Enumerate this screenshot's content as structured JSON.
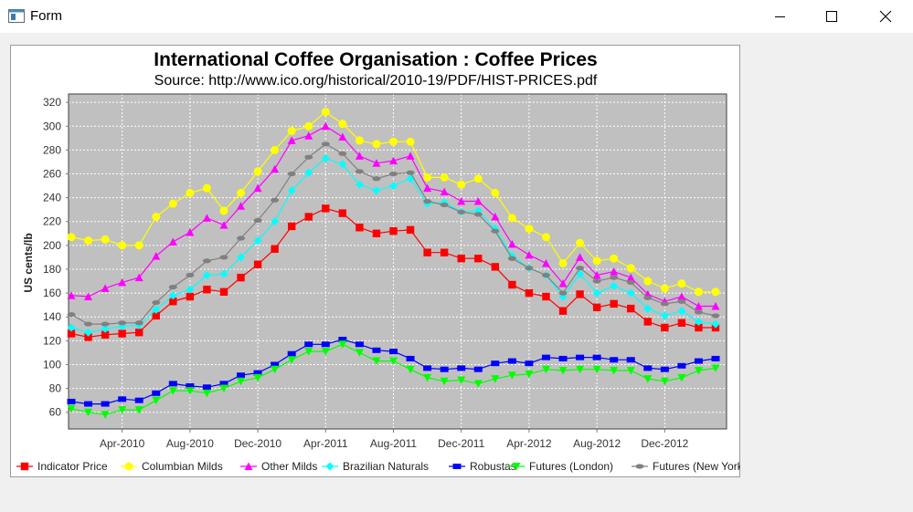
{
  "window": {
    "title": "Form",
    "icons": {
      "app": "form-app-icon",
      "minimize": "minimize-icon",
      "maximize": "maximize-icon",
      "close": "close-icon"
    }
  },
  "chart_data": {
    "type": "line",
    "title": "International Coffee Organisation : Coffee Prices",
    "subtitle": "Source: http://www.ico.org/historical/2010-19/PDF/HIST-PRICES.pdf",
    "xlabel": "",
    "ylabel": "US cents/lb",
    "ylim": [
      46,
      327
    ],
    "yticks": [
      60,
      80,
      100,
      120,
      140,
      160,
      180,
      200,
      220,
      240,
      260,
      280,
      300,
      320
    ],
    "x_tick_labels": [
      "Apr-2010",
      "Aug-2010",
      "Dec-2010",
      "Apr-2011",
      "Aug-2011",
      "Dec-2011",
      "Apr-2012",
      "Aug-2012",
      "Dec-2012"
    ],
    "x_tick_indices": [
      3,
      7,
      11,
      15,
      19,
      23,
      27,
      31,
      35
    ],
    "x": [
      "Jan-2010",
      "Feb-2010",
      "Mar-2010",
      "Apr-2010",
      "May-2010",
      "Jun-2010",
      "Jul-2010",
      "Aug-2010",
      "Sep-2010",
      "Oct-2010",
      "Nov-2010",
      "Dec-2010",
      "Jan-2011",
      "Feb-2011",
      "Mar-2011",
      "Apr-2011",
      "May-2011",
      "Jun-2011",
      "Jul-2011",
      "Aug-2011",
      "Sep-2011",
      "Oct-2011",
      "Nov-2011",
      "Dec-2011",
      "Jan-2012",
      "Feb-2012",
      "Mar-2012",
      "Apr-2012",
      "May-2012",
      "Jun-2012",
      "Jul-2012",
      "Aug-2012",
      "Sep-2012",
      "Oct-2012",
      "Nov-2012",
      "Dec-2012",
      "Jan-2013",
      "Feb-2013",
      "Mar-2013"
    ],
    "grid": true,
    "legend_position": "bottom",
    "series": [
      {
        "name": "Indicator Price",
        "color": "#ff0000",
        "marker": "square",
        "values": [
          126,
          123,
          125,
          126,
          127,
          141,
          153,
          157,
          163,
          161,
          173,
          184,
          197,
          216,
          224,
          231,
          227,
          215,
          210,
          212,
          213,
          194,
          194,
          189,
          189,
          182,
          167,
          160,
          157,
          145,
          159,
          148,
          151,
          147,
          136,
          131,
          135,
          131,
          131
        ]
      },
      {
        "name": "Columbian Milds",
        "color": "#ffff00",
        "marker": "circle",
        "values": [
          207,
          204,
          205,
          200,
          200,
          224,
          235,
          244,
          248,
          229,
          244,
          262,
          280,
          296,
          300,
          312,
          302,
          288,
          285,
          287,
          287,
          257,
          257,
          251,
          256,
          244,
          223,
          214,
          207,
          185,
          202,
          187,
          189,
          181,
          170,
          164,
          168,
          161,
          161
        ]
      },
      {
        "name": "Other Milds",
        "color": "#ff00ff",
        "marker": "triangle-up",
        "values": [
          158,
          157,
          164,
          169,
          173,
          191,
          203,
          211,
          223,
          217,
          233,
          248,
          264,
          288,
          292,
          300,
          291,
          275,
          269,
          271,
          275,
          248,
          245,
          237,
          237,
          224,
          201,
          192,
          185,
          168,
          190,
          175,
          178,
          173,
          159,
          153,
          157,
          149,
          149
        ]
      },
      {
        "name": "Brazilian Naturals",
        "color": "#00ffff",
        "marker": "diamond",
        "values": [
          131,
          127,
          130,
          132,
          133,
          146,
          158,
          163,
          175,
          176,
          190,
          204,
          220,
          246,
          261,
          273,
          268,
          251,
          246,
          250,
          256,
          235,
          236,
          228,
          229,
          214,
          191,
          181,
          175,
          157,
          176,
          160,
          166,
          160,
          147,
          141,
          145,
          136,
          134
        ]
      },
      {
        "name": "Robustas",
        "color": "#0000ff",
        "marker": "rect-wide",
        "values": [
          69,
          67,
          67,
          71,
          70,
          76,
          84,
          82,
          81,
          84,
          91,
          93,
          100,
          109,
          117,
          117,
          121,
          117,
          112,
          111,
          105,
          97,
          96,
          97,
          96,
          101,
          103,
          101,
          106,
          105,
          106,
          106,
          104,
          104,
          97,
          96,
          99,
          103,
          105
        ]
      },
      {
        "name": "Futures (London)",
        "color": "#00ff00",
        "marker": "triangle-down",
        "values": [
          63,
          60,
          58,
          62,
          62,
          70,
          78,
          78,
          76,
          80,
          86,
          89,
          96,
          104,
          111,
          111,
          117,
          110,
          103,
          103,
          96,
          89,
          86,
          87,
          84,
          88,
          91,
          92,
          96,
          95,
          96,
          96,
          95,
          95,
          88,
          86,
          89,
          95,
          97
        ]
      },
      {
        "name": "Futures (New York)",
        "color": "#808080",
        "marker": "ellipse",
        "values": [
          142,
          134,
          134,
          135,
          135,
          152,
          165,
          175,
          187,
          190,
          206,
          221,
          238,
          260,
          274,
          285,
          277,
          262,
          256,
          260,
          261,
          237,
          234,
          228,
          226,
          212,
          189,
          181,
          175,
          160,
          181,
          170,
          173,
          169,
          156,
          151,
          153,
          144,
          141
        ]
      }
    ]
  }
}
